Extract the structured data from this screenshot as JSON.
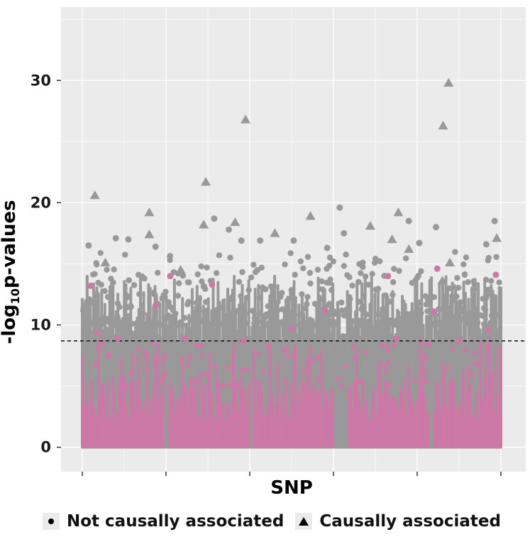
{
  "chart_data": {
    "type": "scatter",
    "title": "",
    "xlabel": "SNP",
    "ylabel_main": "-log",
    "ylabel_sub": "10",
    "ylabel_rest": "p-values",
    "ylim": [
      -2,
      36
    ],
    "yticks": [
      0,
      10,
      20,
      30
    ],
    "ytick_labels": [
      "0",
      "10",
      "20",
      "30"
    ],
    "x_ticks_count": 6,
    "threshold_line": 8.7,
    "grid": true,
    "legend_position": "bottom",
    "colors": {
      "panel": "#ebebeb",
      "grid": "#ffffff",
      "not_causal": "#999999",
      "causal_highlight": "#cc79a7"
    },
    "series": [
      {
        "name": "Causally associated",
        "marker": "triangle",
        "points": [
          {
            "x": 0.03,
            "y": 20.6
          },
          {
            "x": 0.055,
            "y": 15.1
          },
          {
            "x": 0.16,
            "y": 19.2
          },
          {
            "x": 0.16,
            "y": 17.4
          },
          {
            "x": 0.235,
            "y": 14.5
          },
          {
            "x": 0.295,
            "y": 21.7
          },
          {
            "x": 0.29,
            "y": 18.2
          },
          {
            "x": 0.365,
            "y": 18.4
          },
          {
            "x": 0.39,
            "y": 26.8
          },
          {
            "x": 0.46,
            "y": 17.5
          },
          {
            "x": 0.545,
            "y": 18.9
          },
          {
            "x": 0.688,
            "y": 18.1
          },
          {
            "x": 0.755,
            "y": 19.2
          },
          {
            "x": 0.74,
            "y": 17.0
          },
          {
            "x": 0.78,
            "y": 16.2
          },
          {
            "x": 0.875,
            "y": 29.8
          },
          {
            "x": 0.862,
            "y": 26.3
          },
          {
            "x": 0.878,
            "y": 15.1
          },
          {
            "x": 0.86,
            "y": 13.6
          },
          {
            "x": 0.99,
            "y": 17.1
          }
        ]
      },
      {
        "name": "Not causally associated",
        "marker": "circle",
        "outliers": [
          {
            "x": 0.015,
            "y": 16.5
          },
          {
            "x": 0.08,
            "y": 17.1
          },
          {
            "x": 0.11,
            "y": 17.0
          },
          {
            "x": 0.175,
            "y": 16.4
          },
          {
            "x": 0.315,
            "y": 18.7
          },
          {
            "x": 0.35,
            "y": 17.8
          },
          {
            "x": 0.38,
            "y": 16.9
          },
          {
            "x": 0.425,
            "y": 16.9
          },
          {
            "x": 0.505,
            "y": 16.9
          },
          {
            "x": 0.585,
            "y": 16.3
          },
          {
            "x": 0.615,
            "y": 19.6
          },
          {
            "x": 0.625,
            "y": 17.5
          },
          {
            "x": 0.78,
            "y": 18.5
          },
          {
            "x": 0.805,
            "y": 16.7
          },
          {
            "x": 0.845,
            "y": 18.0
          },
          {
            "x": 0.965,
            "y": 16.6
          },
          {
            "x": 0.985,
            "y": 18.5
          }
        ],
        "highlighted": [
          {
            "x": 0.02,
            "y": 13.2
          },
          {
            "x": 0.035,
            "y": 9.4
          },
          {
            "x": 0.085,
            "y": 8.9
          },
          {
            "x": 0.175,
            "y": 11.6
          },
          {
            "x": 0.21,
            "y": 14.0
          },
          {
            "x": 0.245,
            "y": 8.9
          },
          {
            "x": 0.31,
            "y": 13.3
          },
          {
            "x": 0.385,
            "y": 8.7
          },
          {
            "x": 0.5,
            "y": 9.7
          },
          {
            "x": 0.58,
            "y": 11.2
          },
          {
            "x": 0.73,
            "y": 14.0
          },
          {
            "x": 0.75,
            "y": 8.9
          },
          {
            "x": 0.84,
            "y": 11.1
          },
          {
            "x": 0.848,
            "y": 14.6
          },
          {
            "x": 0.9,
            "y": 8.7
          },
          {
            "x": 0.97,
            "y": 9.6
          },
          {
            "x": 0.988,
            "y": 14.1
          }
        ]
      }
    ]
  },
  "legend": {
    "items": [
      {
        "label": "Not causally associated",
        "marker": "circle"
      },
      {
        "label": "Causally associated",
        "marker": "triangle"
      }
    ]
  }
}
